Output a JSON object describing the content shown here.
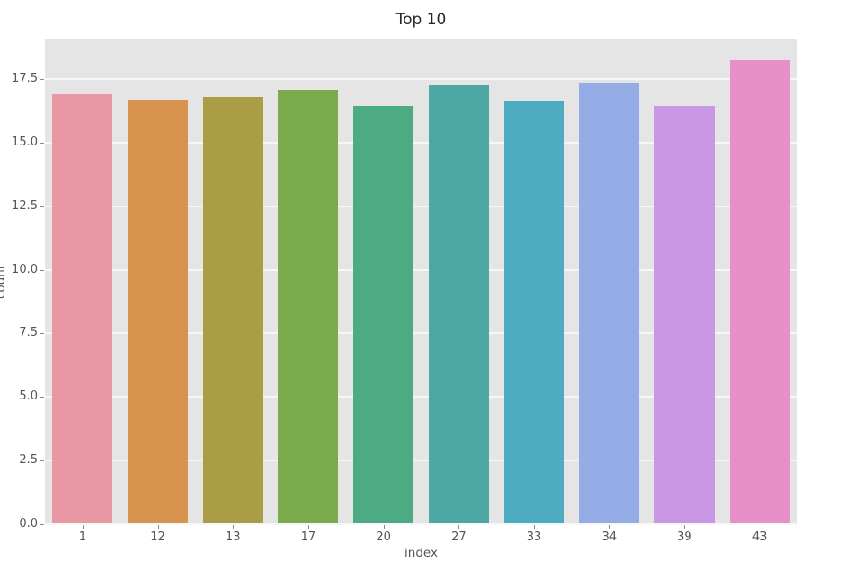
{
  "chart_data": {
    "type": "bar",
    "title": "Top 10",
    "xlabel": "index",
    "ylabel": "count",
    "categories": [
      "1",
      "12",
      "13",
      "17",
      "20",
      "27",
      "33",
      "34",
      "39",
      "43"
    ],
    "values": [
      16.9,
      16.7,
      16.8,
      17.1,
      16.45,
      17.25,
      16.65,
      17.35,
      16.45,
      18.25
    ],
    "bar_colors": [
      "#e898a4",
      "#d6944f",
      "#ab9c46",
      "#7baa4d",
      "#4dab84",
      "#4da7a2",
      "#4fabc2",
      "#94abe5",
      "#c998e4",
      "#e78fc7"
    ],
    "ylim": [
      0,
      19.1
    ],
    "ytick_values": [
      0,
      2.5,
      5,
      7.5,
      10,
      12.5,
      15,
      17.5
    ],
    "ytick_labels": [
      "0.0",
      "2.5",
      "5.0",
      "7.5",
      "10.0",
      "12.5",
      "15.0",
      "17.5"
    ],
    "grid": "horizontal-major",
    "legend": "none",
    "plot_bg_color": "#e5e5e5",
    "grid_color": "#f7f7f7"
  }
}
